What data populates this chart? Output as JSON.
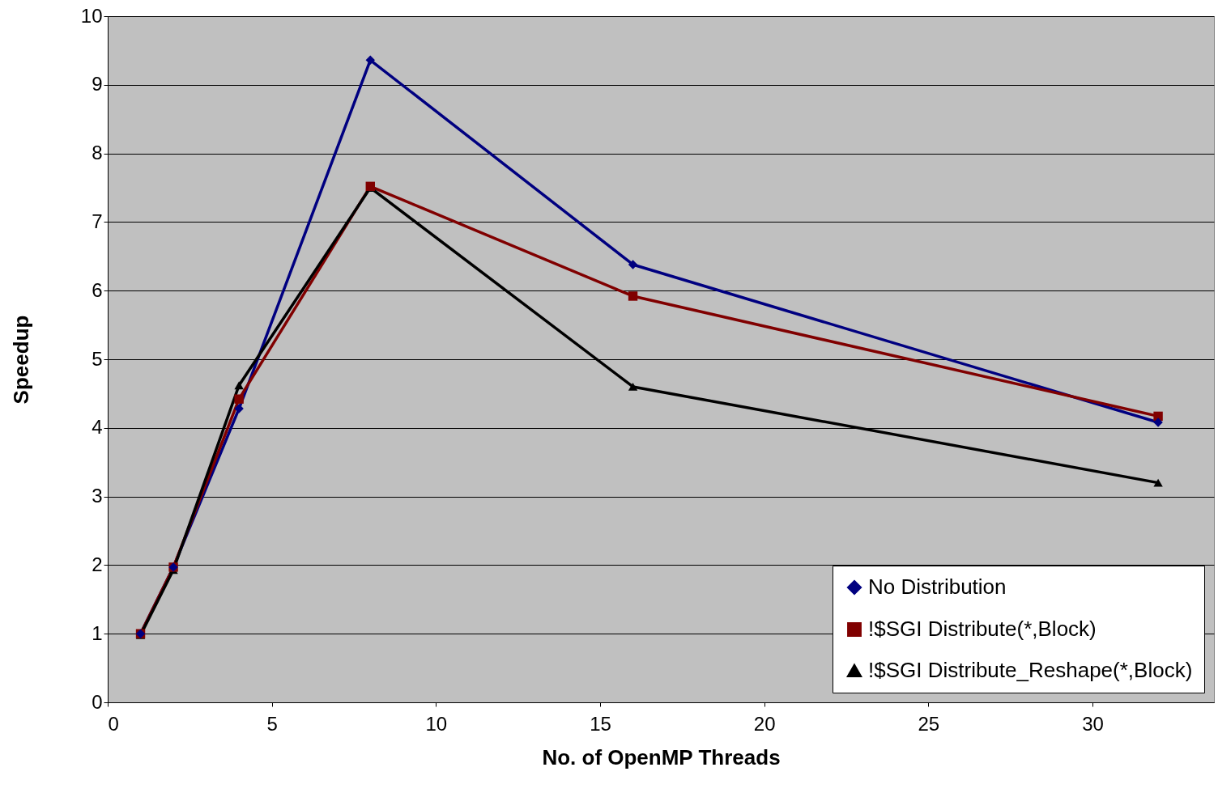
{
  "chart_data": {
    "type": "line",
    "xlabel": "No. of OpenMP Threads",
    "ylabel": "Speedup",
    "x": [
      1,
      2,
      4,
      8,
      16,
      32
    ],
    "xlim": [
      0,
      33.7
    ],
    "xticks": [
      0,
      5,
      10,
      15,
      20,
      25,
      30
    ],
    "ylim": [
      0,
      10
    ],
    "yticks": [
      0,
      1,
      2,
      3,
      4,
      5,
      6,
      7,
      8,
      9,
      10
    ],
    "grid": "y",
    "legend": "bottom right",
    "series": [
      {
        "name": "No Distribution",
        "color": "#000080",
        "marker": "diamond",
        "values": [
          1.0,
          1.97,
          4.28,
          9.36,
          6.38,
          4.08
        ]
      },
      {
        "name": "!$SGI Distribute(*,Block)",
        "color": "#800000",
        "marker": "square",
        "values": [
          1.0,
          1.97,
          4.42,
          7.52,
          5.92,
          4.17
        ]
      },
      {
        "name": "!$SGI Distribute_Reshape(*,Block)",
        "color": "#000000",
        "marker": "triangle",
        "values": [
          0.98,
          1.93,
          4.62,
          7.5,
          4.6,
          3.2
        ]
      }
    ]
  }
}
